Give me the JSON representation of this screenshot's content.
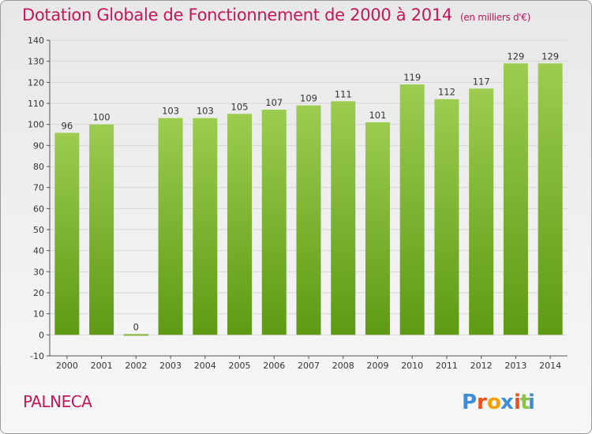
{
  "title": "Dotation Globale de Fonctionnement de 2000 à 2014",
  "unit": "(en milliers d'€)",
  "commune": "PALNECA",
  "logo": {
    "text": "Proxiti",
    "letters": [
      "P",
      "r",
      "o",
      "x",
      "i",
      "t",
      "i"
    ],
    "colors": [
      "#3d8ed8",
      "#e8501e",
      "#f2a100",
      "#3d8ed8",
      "#e8501e",
      "#8bc34a",
      "#3d8ed8"
    ]
  },
  "colors": {
    "bar_top": "#9ccc50",
    "bar_bottom": "#5e9a14",
    "grid": "#d6d6d6",
    "title": "#c2185b"
  },
  "chart_data": {
    "type": "bar",
    "categories": [
      "2000",
      "2001",
      "2002",
      "2003",
      "2004",
      "2005",
      "2006",
      "2007",
      "2008",
      "2009",
      "2010",
      "2011",
      "2012",
      "2013",
      "2014"
    ],
    "values": [
      96,
      100,
      0,
      103,
      103,
      105,
      107,
      109,
      111,
      101,
      119,
      112,
      117,
      129,
      129
    ],
    "value_labels": [
      "96",
      "100",
      "0",
      "103",
      "103",
      "105",
      "107",
      "109",
      "111",
      "101",
      "119",
      "112",
      "117",
      "129",
      "129"
    ],
    "y_ticks": [
      "-10",
      "0",
      "10",
      "20",
      "30",
      "40",
      "50",
      "60",
      "70",
      "80",
      "90",
      "100",
      "110",
      "120",
      "130",
      "140"
    ],
    "ylim": [
      -10,
      140
    ],
    "grid": true
  }
}
